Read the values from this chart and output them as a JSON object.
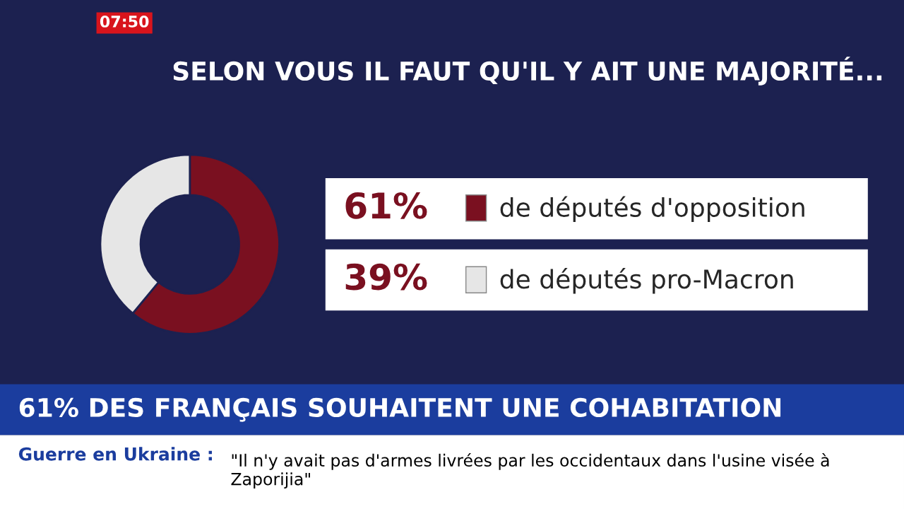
{
  "chart_data": {
    "type": "donut",
    "title": "SELON VOUS IL FAUT QU'IL Y AIT UNE MAJORITÉ...",
    "categories": [
      "de députés d'opposition",
      "de députés pro-Macron"
    ],
    "values": [
      61,
      39
    ],
    "value_labels": [
      "61%",
      "39%"
    ],
    "colors": [
      "#7a1020",
      "#e6e6e6"
    ],
    "legend": "right",
    "annotations": [
      "07:50",
      "61% DES FRANÇAIS SOUHAITENT UNE COHABITATION",
      "Guerre en Ukraine :",
      "\"Il n'y avait pas d'armes livrées par les occidentaux dans l'usine visée à Zaporijia\""
    ]
  }
}
